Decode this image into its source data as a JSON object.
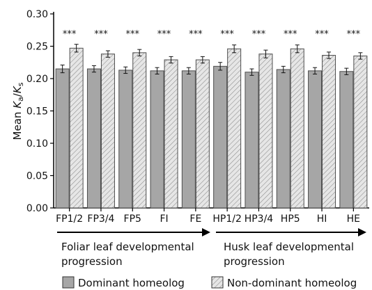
{
  "chart_data": {
    "type": "bar",
    "title": "",
    "xlabel": "",
    "ylabel_prefix": "Mean ",
    "ylabel_ka": "K",
    "ylabel_ka_sub": "a",
    "ylabel_slash": "/",
    "ylabel_ks": "K",
    "ylabel_ks_sub": "s",
    "ylim": [
      0,
      0.3
    ],
    "yticks": [
      "0.00",
      "0.05",
      "0.10",
      "0.15",
      "0.20",
      "0.25",
      "0.30"
    ],
    "categories": [
      "FP1/2",
      "FP3/4",
      "FP5",
      "FI",
      "FE",
      "HP1/2",
      "HP3/4",
      "HP5",
      "HI",
      "HE"
    ],
    "series": [
      {
        "name": "Dominant homeolog",
        "color": "#a6a6a6",
        "pattern": "solid",
        "values": [
          0.215,
          0.215,
          0.213,
          0.212,
          0.212,
          0.219,
          0.21,
          0.214,
          0.212,
          0.211
        ],
        "errors": [
          0.006,
          0.005,
          0.005,
          0.005,
          0.005,
          0.006,
          0.005,
          0.005,
          0.005,
          0.005
        ]
      },
      {
        "name": "Non-dominant homeolog",
        "color": "#d9d9d9",
        "pattern": "hatched",
        "values": [
          0.247,
          0.238,
          0.24,
          0.229,
          0.229,
          0.246,
          0.238,
          0.246,
          0.236,
          0.235
        ],
        "errors": [
          0.006,
          0.005,
          0.005,
          0.005,
          0.005,
          0.006,
          0.006,
          0.006,
          0.005,
          0.005
        ]
      }
    ],
    "significance": [
      "***",
      "***",
      "***",
      "***",
      "***",
      "***",
      "***",
      "***",
      "***",
      "***"
    ],
    "grid": false,
    "legend_position": "bottom"
  },
  "annotations": {
    "foliar_line1": "Foliar leaf developmental",
    "foliar_line2": "progression",
    "husk_line1": "Husk leaf developmental",
    "husk_line2": "progression"
  }
}
